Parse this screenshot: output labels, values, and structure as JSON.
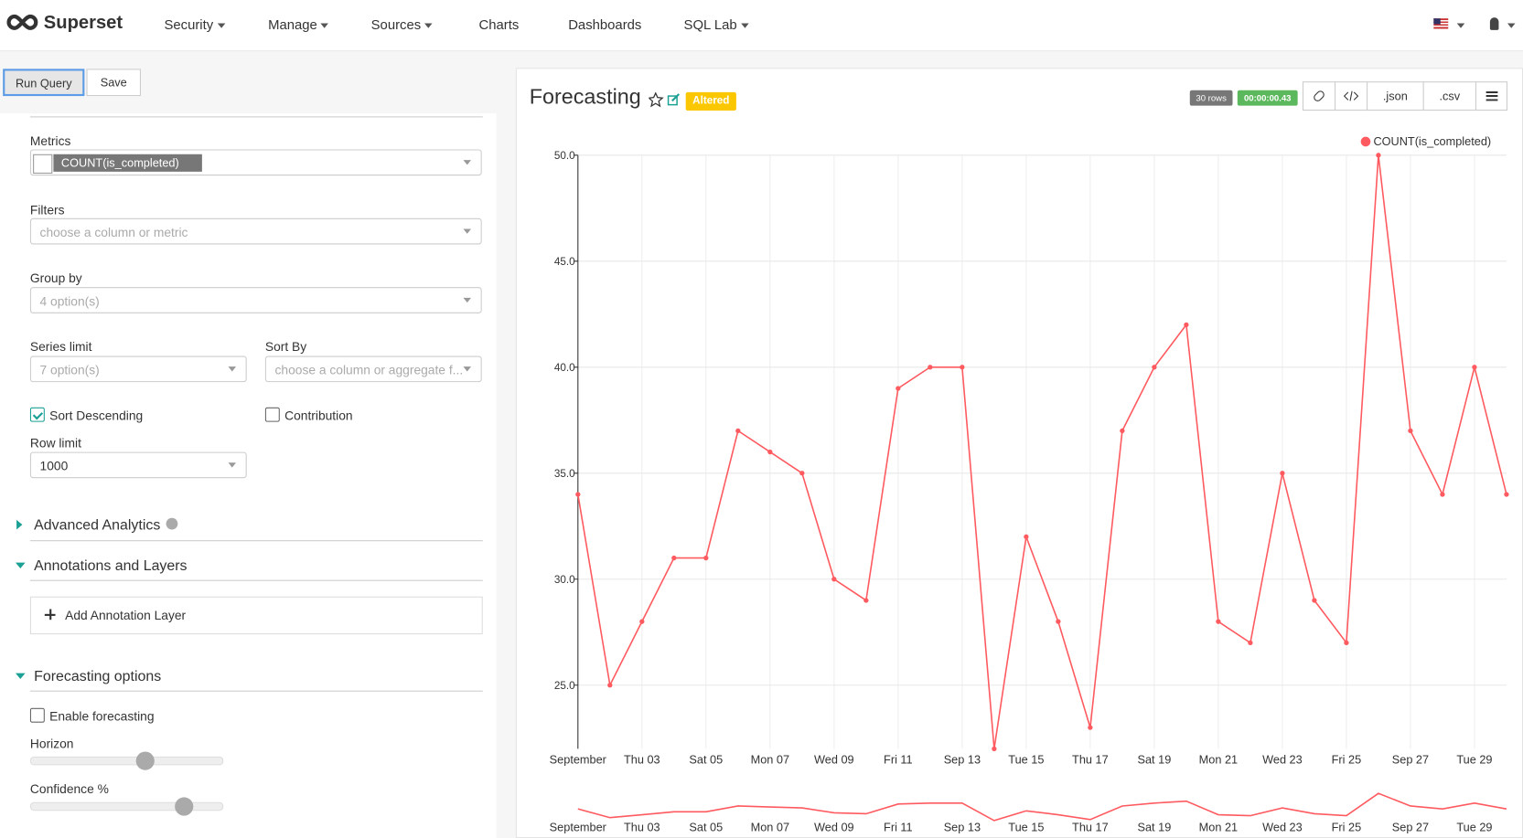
{
  "nav": {
    "brand": "Superset",
    "items": [
      "Security",
      "Manage",
      "Sources",
      "Charts",
      "Dashboards",
      "SQL Lab"
    ]
  },
  "toolbar": {
    "run": "Run Query",
    "save": "Save"
  },
  "form": {
    "metrics_label": "Metrics",
    "metric": "COUNT(is_completed)",
    "filters_label": "Filters",
    "filters_placeholder": "choose a column or metric",
    "groupby_label": "Group by",
    "groupby_value": "4 option(s)",
    "series_limit_label": "Series limit",
    "series_limit_value": "7 option(s)",
    "sort_by_label": "Sort By",
    "sort_by_placeholder": "choose a column or aggregate f...",
    "sort_desc": "Sort Descending",
    "contribution": "Contribution",
    "row_limit_label": "Row limit",
    "row_limit_value": 1000,
    "sections": [
      "Advanced Analytics",
      "Annotations and Layers",
      "Forecasting options"
    ],
    "add_annotation": "Add Annotation Layer",
    "enable_forecasting": "Enable forecasting",
    "horizon_label": "Horizon",
    "confidence_label": "Confidence %"
  },
  "chart_header": {
    "title": "Forecasting",
    "badge": "Altered",
    "rows": "30 rows",
    "duration": "00:00:00.43",
    "json": ".json",
    "csv": ".csv"
  },
  "chart_data": {
    "type": "line",
    "categories": [
      "September",
      null,
      "Thu 03",
      null,
      "Sat 05",
      null,
      "Mon 07",
      null,
      "Wed 09",
      null,
      "Fri 11",
      null,
      "Sep 13",
      null,
      "Tue 15",
      null,
      "Thu 17",
      null,
      "Sat 19",
      null,
      "Mon 21",
      null,
      "Wed 23",
      null,
      "Fri 25",
      null,
      "Sep 27",
      null,
      "Tue 29",
      null
    ],
    "series": [
      {
        "name": "COUNT(is_completed)",
        "color": "#ff5a5f",
        "values": [
          34,
          25,
          28,
          31,
          31,
          37,
          36,
          35,
          30,
          29,
          39,
          40,
          40,
          22,
          32,
          28,
          23,
          37,
          40,
          42,
          28,
          27,
          35,
          29,
          27,
          50,
          37,
          34,
          40,
          34
        ]
      }
    ],
    "ylim": [
      22,
      50
    ],
    "yticks": [
      {
        "value": 25,
        "label": "25.0"
      },
      {
        "value": 30,
        "label": "30.0"
      },
      {
        "value": 35,
        "label": "35.0"
      },
      {
        "value": 40,
        "label": "40.0"
      },
      {
        "value": 45,
        "label": "45.0"
      },
      {
        "value": 50,
        "label": "50.0"
      }
    ],
    "grid": true,
    "legend": "top-right"
  }
}
